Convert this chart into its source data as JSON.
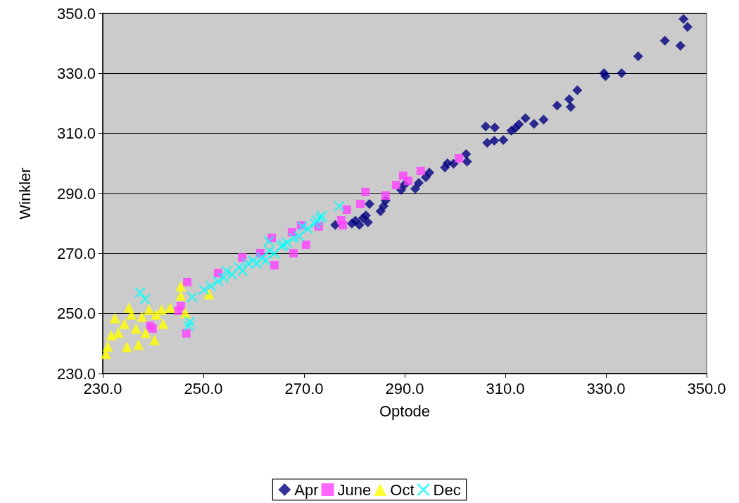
{
  "chart_data": {
    "type": "scatter",
    "xlabel": "Optode",
    "ylabel": "Winkler",
    "xlim": [
      230,
      350
    ],
    "ylim": [
      230,
      350
    ],
    "xticks": [
      {
        "value": 230,
        "label": "230.0"
      },
      {
        "value": 250,
        "label": "250.0"
      },
      {
        "value": 270,
        "label": "270.0"
      },
      {
        "value": 290,
        "label": "290.0"
      },
      {
        "value": 310,
        "label": "310.0"
      },
      {
        "value": 330,
        "label": "330.0"
      },
      {
        "value": 350,
        "label": "350.0"
      }
    ],
    "yticks": [
      {
        "value": 230,
        "label": "230.0"
      },
      {
        "value": 250,
        "label": "250.0"
      },
      {
        "value": 270,
        "label": "270.0"
      },
      {
        "value": 290,
        "label": "290.0"
      },
      {
        "value": 310,
        "label": "310.0"
      },
      {
        "value": 330,
        "label": "330.0"
      },
      {
        "value": 350,
        "label": "350.0"
      }
    ],
    "grid": "y",
    "legend": "bottom",
    "series": [
      {
        "name": "Apr",
        "color": "#000080",
        "marker": "diamond",
        "x": [
          276.2,
          279.5,
          280.2,
          281,
          281.7,
          282.3,
          282.7,
          283,
          285.2,
          285.8,
          286.2,
          289.3,
          290,
          292.1,
          292.8,
          294.2,
          294.9,
          298,
          298.5,
          299.7,
          302.4,
          302.2,
          306.1,
          306.4,
          307.9,
          307.8,
          309.6,
          311.2,
          312,
          312.7,
          314,
          315.7,
          317.6,
          320.3,
          322.7,
          323,
          324.3,
          329.6,
          329.9,
          333.1,
          336.4,
          341.7,
          344.8,
          345.4,
          346.2
        ],
        "values": [
          279.5,
          280,
          280.9,
          279.5,
          281.8,
          282.7,
          280.4,
          286.5,
          284.1,
          285.8,
          287.6,
          291.2,
          293,
          291.6,
          293.5,
          295.4,
          297,
          298.7,
          300.1,
          299.9,
          300.6,
          303.1,
          312.3,
          306.9,
          312,
          307.6,
          307.8,
          310.9,
          311.8,
          313,
          315.1,
          313.2,
          314.6,
          319.3,
          321.4,
          318.8,
          324.4,
          330.1,
          329.1,
          330.1,
          335.7,
          340.9,
          339.2,
          348.1,
          345.5
        ]
      },
      {
        "name": "June",
        "color": "#ff40ff",
        "marker": "square",
        "x": [
          246.8,
          246.6,
          239.9,
          239.4,
          245.5,
          245,
          252.9,
          257.7,
          261.3,
          264.1,
          263.6,
          267.9,
          267.6,
          270.4,
          269.4,
          272.9,
          277.4,
          278.5,
          277.7,
          281.2,
          282.2,
          286.2,
          288.3,
          289.7,
          290.7,
          293.2,
          300.8
        ],
        "values": [
          260.5,
          243.4,
          245,
          245.9,
          252.5,
          250.9,
          263.5,
          268.7,
          270.1,
          266.1,
          275.2,
          270.1,
          277.1,
          272.9,
          279.4,
          279,
          281.1,
          284.6,
          279.4,
          286.5,
          290.5,
          289.3,
          292.8,
          295.9,
          294.2,
          297.5,
          301.7
        ]
      },
      {
        "name": "Oct",
        "color": "#ffff00",
        "marker": "triangle",
        "x": [
          230.6,
          231,
          231.7,
          232.4,
          233.1,
          234.3,
          235.2,
          234.8,
          235.7,
          236.6,
          237.1,
          237.8,
          238.5,
          239.2,
          240.3,
          240.6,
          241.7,
          242,
          243.4,
          245.5,
          245.5,
          246.4,
          251.1
        ],
        "values": [
          236.6,
          239.1,
          242.7,
          248.5,
          243.6,
          246.6,
          252,
          238.9,
          249.7,
          245,
          239.6,
          249,
          243.6,
          251.3,
          241.2,
          249.7,
          251.3,
          246.6,
          252,
          259.1,
          256,
          250.2,
          256.5
        ]
      },
      {
        "name": "Dec",
        "color": "#00ffff",
        "marker": "cross",
        "x": [
          237.4,
          238.4,
          247.3,
          247.1,
          247.8,
          250.1,
          251.5,
          252.9,
          254,
          254.6,
          255.7,
          257.1,
          257.8,
          258.8,
          259.9,
          260.6,
          261.6,
          262.4,
          263.1,
          264.1,
          265.5,
          266.6,
          268,
          269,
          269.7,
          270.7,
          272.2,
          273.2,
          277,
          273.5,
          272.5,
          263,
          265.9
        ],
        "values": [
          257,
          254.8,
          247.3,
          245.9,
          255.5,
          257.9,
          259.1,
          260.7,
          261.9,
          264.2,
          263,
          265.4,
          264.2,
          266.8,
          267.7,
          266.6,
          268.7,
          267.7,
          270.8,
          270.1,
          272.4,
          273.6,
          275.2,
          275.7,
          279,
          278.3,
          279.9,
          281.8,
          285.8,
          282.5,
          281.1,
          274.1,
          272.9
        ]
      }
    ]
  }
}
